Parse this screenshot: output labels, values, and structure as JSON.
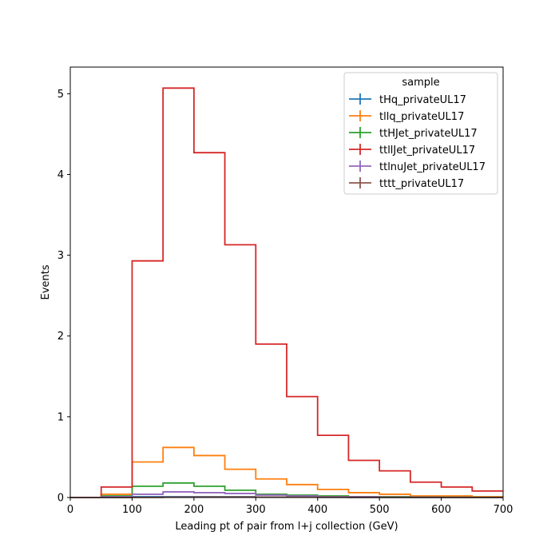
{
  "chart_data": {
    "type": "histogram-step",
    "xlabel": "Leading pt of pair from l+j collection (GeV)",
    "ylabel": "Events",
    "xlim": [
      0,
      700
    ],
    "ylim": [
      0,
      5.33
    ],
    "xticks": [
      0,
      100,
      200,
      300,
      400,
      500,
      600,
      700
    ],
    "yticks": [
      0,
      1,
      2,
      3,
      4,
      5
    ],
    "grid": false,
    "legend": {
      "title": "sample",
      "placement": "top-right"
    },
    "bin_edges": [
      0,
      50,
      100,
      150,
      200,
      250,
      300,
      350,
      400,
      450,
      500,
      550,
      600,
      650,
      700
    ],
    "series": [
      {
        "name": "tHq_privateUL17",
        "color": "#1f77b4",
        "values": [
          0,
          0,
          0.01,
          0.01,
          0.01,
          0.01,
          0.005,
          0.005,
          0.003,
          0.002,
          0.001,
          0.001,
          0.001,
          0.001
        ]
      },
      {
        "name": "tllq_privateUL17",
        "color": "#ff7f0e",
        "values": [
          0,
          0.04,
          0.44,
          0.62,
          0.52,
          0.35,
          0.23,
          0.16,
          0.1,
          0.06,
          0.04,
          0.02,
          0.02,
          0.01
        ]
      },
      {
        "name": "ttHJet_privateUL17",
        "color": "#2ca02c",
        "values": [
          0,
          0.02,
          0.14,
          0.18,
          0.14,
          0.09,
          0.04,
          0.03,
          0.02,
          0.01,
          0.01,
          0.005,
          0.003,
          0.002
        ]
      },
      {
        "name": "ttllJet_privateUL17",
        "color": "#d62728",
        "values": [
          0,
          0.13,
          2.93,
          5.07,
          4.27,
          3.13,
          1.9,
          1.25,
          0.77,
          0.46,
          0.33,
          0.19,
          0.13,
          0.08
        ]
      },
      {
        "name": "ttlnuJet_privateUL17",
        "color": "#9467bd",
        "values": [
          0,
          0.01,
          0.04,
          0.07,
          0.06,
          0.05,
          0.03,
          0.02,
          0.01,
          0.01,
          0.005,
          0.003,
          0.002,
          0.001
        ]
      },
      {
        "name": "tttt_privateUL17",
        "color": "#8c564b",
        "values": [
          0,
          0,
          0.002,
          0.005,
          0.006,
          0.006,
          0.005,
          0.004,
          0.003,
          0.002,
          0.002,
          0.001,
          0.001,
          0.001
        ]
      }
    ]
  }
}
